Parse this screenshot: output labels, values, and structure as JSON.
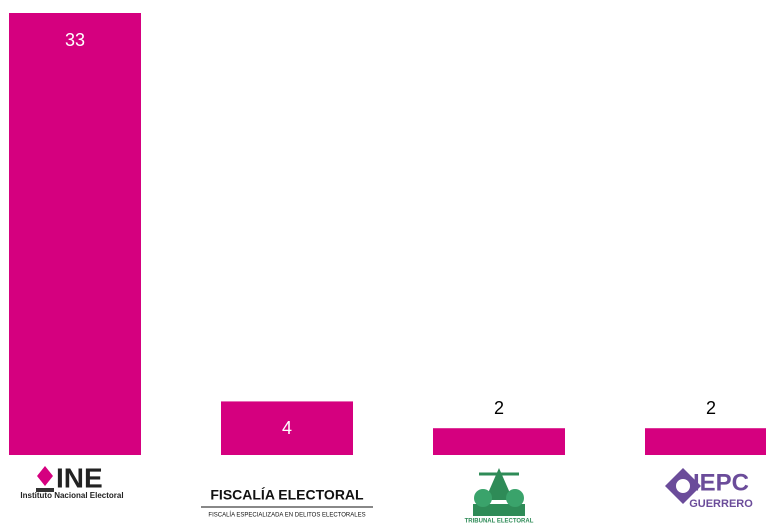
{
  "chart_data": {
    "type": "bar",
    "categories": [
      "INE",
      "FISCALÍA ELECTORAL",
      "TRIBUNAL ELECTORAL",
      "IEPC"
    ],
    "category_sublabels": [
      "Instituto Nacional Electoral",
      "FISCALÍA ESPECIALIZADA EN DELITOS ELECTORALES",
      null,
      "GUERRERO"
    ],
    "values": [
      33,
      4,
      2,
      2
    ],
    "color": "#d5007f",
    "ylim": [
      0,
      33
    ]
  }
}
